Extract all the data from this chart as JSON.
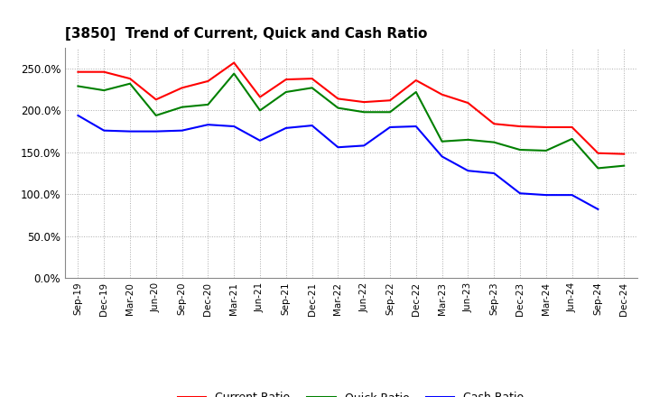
{
  "title": "[3850]  Trend of Current, Quick and Cash Ratio",
  "x_labels": [
    "Sep-19",
    "Dec-19",
    "Mar-20",
    "Jun-20",
    "Sep-20",
    "Dec-20",
    "Mar-21",
    "Jun-21",
    "Sep-21",
    "Dec-21",
    "Mar-22",
    "Jun-22",
    "Sep-22",
    "Dec-22",
    "Mar-23",
    "Jun-23",
    "Sep-23",
    "Dec-23",
    "Mar-24",
    "Jun-24",
    "Sep-24",
    "Dec-24"
  ],
  "current_ratio": [
    2.46,
    2.46,
    2.38,
    2.13,
    2.27,
    2.35,
    2.57,
    2.16,
    2.37,
    2.38,
    2.14,
    2.1,
    2.12,
    2.36,
    2.19,
    2.09,
    1.84,
    1.81,
    1.8,
    1.8,
    1.49,
    1.48
  ],
  "quick_ratio": [
    2.29,
    2.24,
    2.32,
    1.94,
    2.04,
    2.07,
    2.44,
    2.0,
    2.22,
    2.27,
    2.03,
    1.98,
    1.98,
    2.22,
    1.63,
    1.65,
    1.62,
    1.53,
    1.52,
    1.66,
    1.31,
    1.34
  ],
  "cash_ratio": [
    1.94,
    1.76,
    1.75,
    1.75,
    1.76,
    1.83,
    1.81,
    1.64,
    1.79,
    1.82,
    1.56,
    1.58,
    1.8,
    1.81,
    1.45,
    1.28,
    1.25,
    1.01,
    0.99,
    0.99,
    0.82,
    null
  ],
  "current_color": "#FF0000",
  "quick_color": "#008000",
  "cash_color": "#0000FF",
  "bg_color": "#FFFFFF",
  "plot_bg_color": "#FFFFFF",
  "grid_color": "#AAAAAA",
  "ylim": [
    0.0,
    2.75
  ],
  "yticks": [
    0.0,
    0.5,
    1.0,
    1.5,
    2.0,
    2.5
  ],
  "ytick_labels": [
    "0.0%",
    "50.0%",
    "100.0%",
    "150.0%",
    "200.0%",
    "250.0%"
  ]
}
